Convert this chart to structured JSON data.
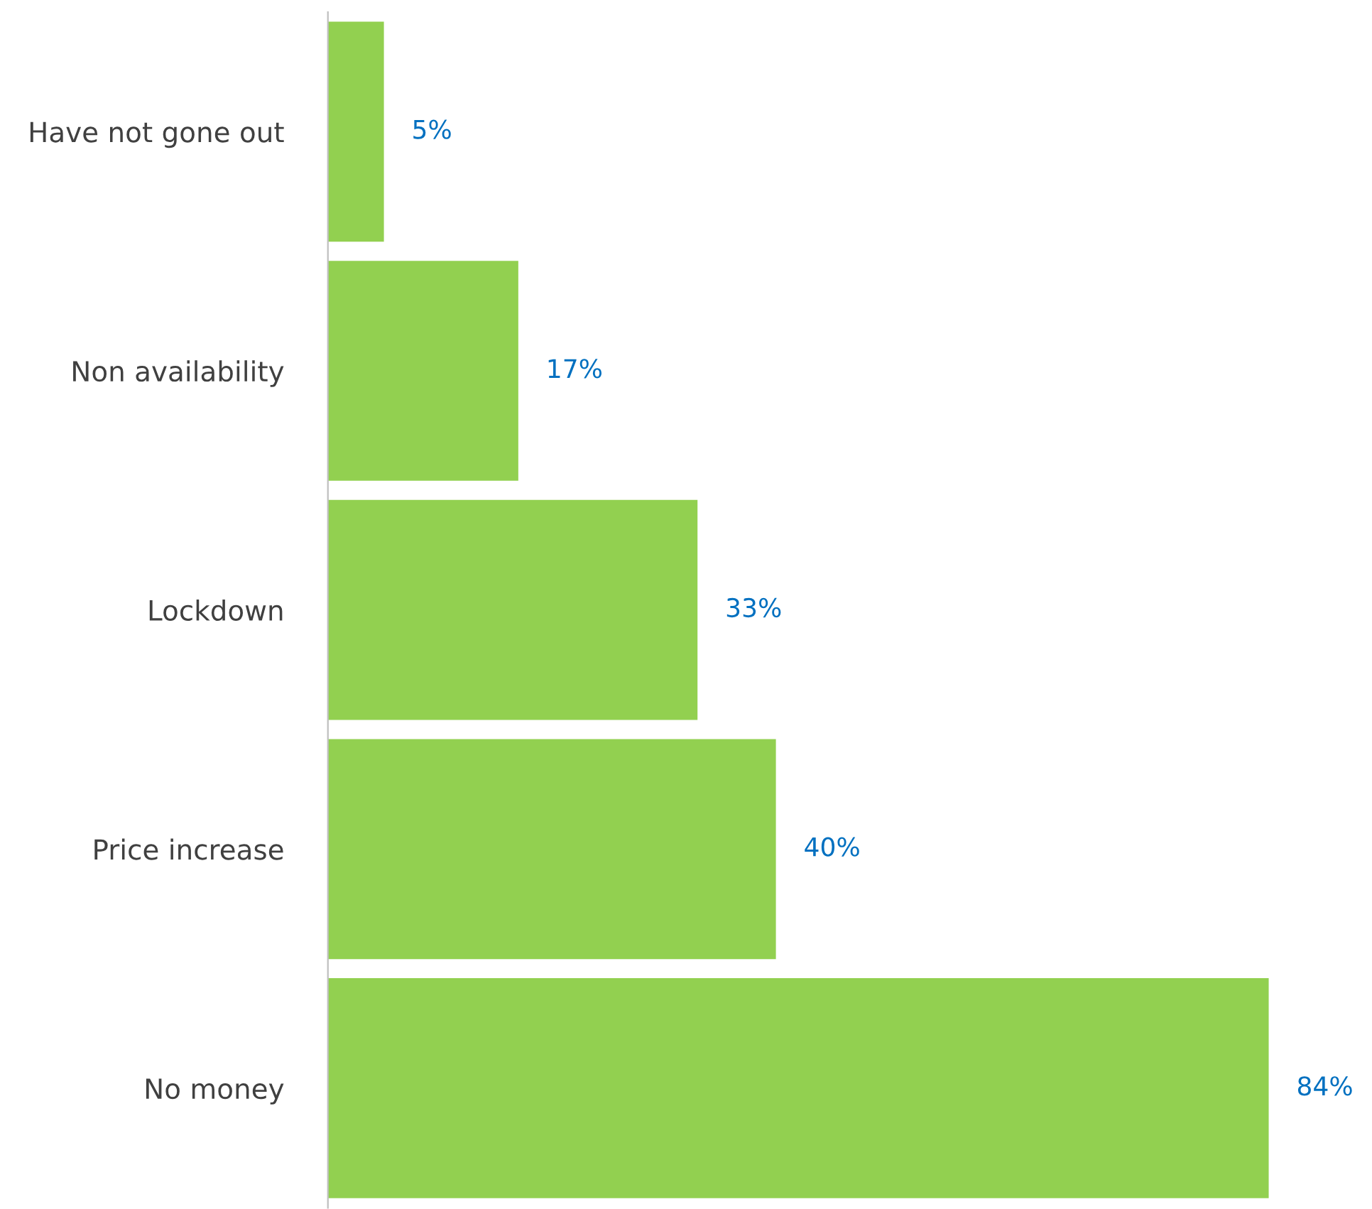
{
  "chart_data": {
    "type": "bar",
    "orientation": "horizontal",
    "categories": [
      "Have not gone out",
      "Non availability",
      "Lockdown",
      "Price increase",
      "No money"
    ],
    "values": [
      5,
      17,
      33,
      40,
      84
    ],
    "value_labels": [
      "5%",
      "17%",
      "33%",
      "40%",
      "84%"
    ],
    "color": "#92d050",
    "tick_labels": "y",
    "grid": false,
    "legend": false
  }
}
